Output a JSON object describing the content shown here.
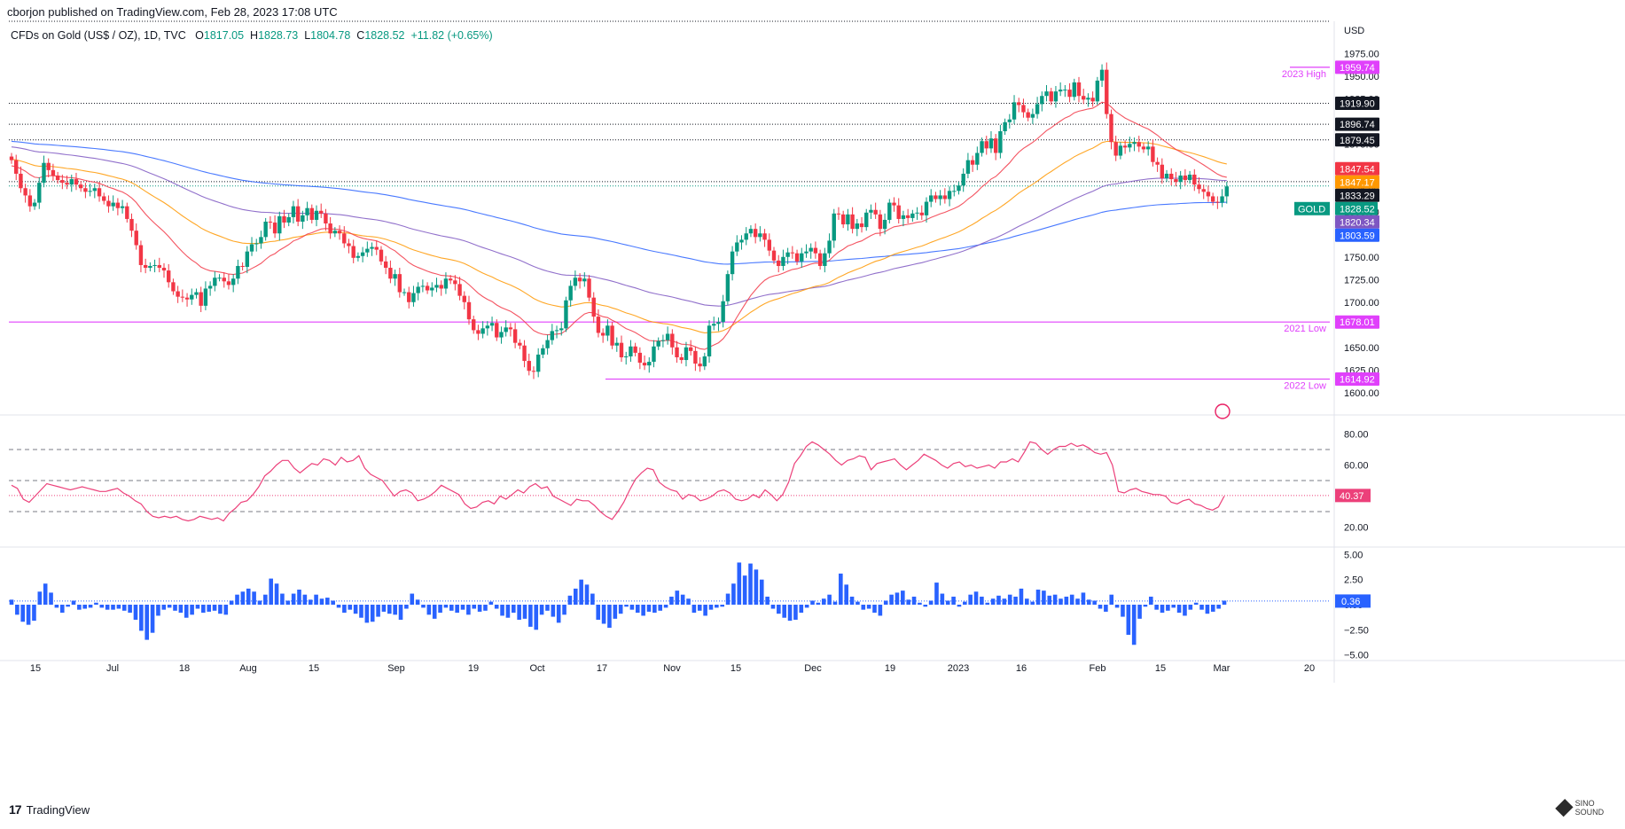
{
  "header": {
    "published": "cborjon published on TradingView.com, Feb 28, 2023 17:08 UTC",
    "symbol": "CFDs on Gold (US$ / OZ), 1D, TVC",
    "open_label": "O",
    "open": "1817.05",
    "high_label": "H",
    "high": "1828.73",
    "low_label": "L",
    "low": "1804.78",
    "close_label": "C",
    "close": "1828.52",
    "change": "+11.82 (+0.65%)"
  },
  "footer": {
    "brand": "TradingView",
    "watermark": "SINO SOUND"
  },
  "colors": {
    "up": "#089981",
    "down": "#f23645",
    "ema20": "#f23645",
    "ema50": "#ff9800",
    "ema100": "#7e57c2",
    "ema200": "#2962ff",
    "level": "#e040fb",
    "rsi": "#ec407a",
    "hist": "#2962ff"
  },
  "chart_data": {
    "type": "candlestick",
    "currency": "USD",
    "x_axis_labels": [
      "15",
      "Jul",
      "18",
      "Aug",
      "15",
      "Sep",
      "19",
      "Oct",
      "17",
      "Nov",
      "15",
      "Dec",
      "19",
      "2023",
      "16",
      "Feb",
      "15",
      "Mar",
      "20"
    ],
    "price_axis": {
      "ticks": [
        "1975.00",
        "1950.00",
        "1925.00",
        "1900.00",
        "1875.00",
        "1850.00",
        "1825.00",
        "1800.00",
        "1775.00",
        "1750.00",
        "1725.00",
        "1700.00",
        "1675.00",
        "1650.00",
        "1625.00",
        "1600.00"
      ],
      "ylim": [
        1588,
        1990
      ]
    },
    "price_labels": [
      {
        "value": 1959.74,
        "text": "1959.74",
        "kind": "level"
      },
      {
        "value": 1919.9,
        "text": "1919.90",
        "kind": "dotted"
      },
      {
        "value": 1896.74,
        "text": "1896.74",
        "kind": "dotted"
      },
      {
        "value": 1879.45,
        "text": "1879.45",
        "kind": "dotted"
      },
      {
        "value": 1847.54,
        "text": "1847.54",
        "kind": "ema20"
      },
      {
        "value": 1847.17,
        "text": "1847.17",
        "kind": "ema50"
      },
      {
        "value": 1833.29,
        "text": "1833.29",
        "kind": "dotted"
      },
      {
        "value": 1828.52,
        "text": "1828.52",
        "kind": "last"
      },
      {
        "value": 1820.34,
        "text": "1820.34",
        "kind": "ema100"
      },
      {
        "value": 1803.59,
        "text": "1803.59",
        "kind": "ema200"
      },
      {
        "value": 1678.01,
        "text": "1678.01",
        "kind": "level"
      },
      {
        "value": 1614.92,
        "text": "1614.92",
        "kind": "level"
      }
    ],
    "level_annotations": [
      {
        "value": 1959.74,
        "text": "2023 High"
      },
      {
        "value": 1678.01,
        "text": "2021 Low"
      },
      {
        "value": 1614.92,
        "text": "2022 Low"
      }
    ],
    "symbol_tag": "GOLD",
    "closes": [
      1857,
      1842,
      1826,
      1818,
      1806,
      1810,
      1832,
      1854,
      1846,
      1840,
      1835,
      1832,
      1830,
      1836,
      1830,
      1826,
      1822,
      1823,
      1826,
      1817,
      1812,
      1806,
      1810,
      1804,
      1806,
      1792,
      1779,
      1763,
      1741,
      1738,
      1740,
      1741,
      1738,
      1735,
      1722,
      1712,
      1706,
      1705,
      1703,
      1708,
      1711,
      1696,
      1715,
      1718,
      1727,
      1727,
      1723,
      1719,
      1726,
      1740,
      1739,
      1756,
      1764,
      1765,
      1772,
      1789,
      1788,
      1776,
      1795,
      1788,
      1794,
      1806,
      1789,
      1796,
      1804,
      1791,
      1801,
      1798,
      1787,
      1776,
      1779,
      1776,
      1765,
      1762,
      1749,
      1751,
      1755,
      1759,
      1761,
      1758,
      1745,
      1738,
      1726,
      1731,
      1711,
      1711,
      1700,
      1710,
      1717,
      1718,
      1713,
      1716,
      1719,
      1715,
      1726,
      1724,
      1720,
      1707,
      1700,
      1681,
      1669,
      1665,
      1671,
      1674,
      1677,
      1661,
      1667,
      1672,
      1670,
      1655,
      1652,
      1635,
      1624,
      1623,
      1642,
      1649,
      1658,
      1668,
      1669,
      1671,
      1702,
      1718,
      1727,
      1723,
      1726,
      1705,
      1684,
      1666,
      1663,
      1674,
      1652,
      1655,
      1639,
      1640,
      1651,
      1644,
      1633,
      1630,
      1634,
      1651,
      1657,
      1658,
      1665,
      1650,
      1639,
      1636,
      1650,
      1646,
      1632,
      1629,
      1640,
      1674,
      1676,
      1678,
      1701,
      1731,
      1756,
      1766,
      1769,
      1776,
      1781,
      1772,
      1776,
      1769,
      1757,
      1746,
      1740,
      1750,
      1755,
      1754,
      1745,
      1754,
      1756,
      1760,
      1754,
      1740,
      1754,
      1768,
      1798,
      1797,
      1786,
      1797,
      1781,
      1787,
      1783,
      1799,
      1802,
      1797,
      1781,
      1791,
      1810,
      1807,
      1792,
      1796,
      1793,
      1798,
      1799,
      1796,
      1811,
      1818,
      1814,
      1818,
      1814,
      1823,
      1823,
      1829,
      1842,
      1857,
      1852,
      1865,
      1878,
      1870,
      1881,
      1865,
      1889,
      1899,
      1902,
      1921,
      1918,
      1910,
      1904,
      1908,
      1919,
      1928,
      1933,
      1922,
      1933,
      1935,
      1935,
      1927,
      1943,
      1928,
      1924,
      1926,
      1922,
      1945,
      1957,
      1908,
      1877,
      1862,
      1873,
      1871,
      1875,
      1877,
      1872,
      1869,
      1872,
      1855,
      1852,
      1837,
      1842,
      1836,
      1833,
      1840,
      1835,
      1841,
      1830,
      1825,
      1822,
      1817,
      1811,
      1810,
      1817,
      1828
    ]
  },
  "rsi": {
    "ticks": [
      "80.00",
      "60.00",
      "40.00",
      "20.00"
    ],
    "ylim": [
      10,
      90
    ],
    "bands": [
      70,
      50,
      30
    ],
    "last": "40.37",
    "values": [
      47,
      45,
      38,
      36,
      40,
      44,
      48,
      47,
      46,
      45,
      44,
      45,
      46,
      45,
      44,
      43,
      43,
      44,
      45,
      42,
      40,
      37,
      35,
      30,
      27,
      26,
      27,
      26,
      27,
      25,
      24,
      25,
      27,
      26,
      25,
      26,
      24,
      29,
      32,
      36,
      37,
      41,
      46,
      53,
      56,
      60,
      63,
      63,
      58,
      55,
      58,
      61,
      60,
      64,
      63,
      60,
      65,
      62,
      63,
      66,
      58,
      54,
      52,
      50,
      45,
      40,
      43,
      44,
      42,
      37,
      38,
      40,
      43,
      47,
      45,
      43,
      41,
      35,
      32,
      33,
      36,
      37,
      35,
      40,
      38,
      41,
      44,
      42,
      46,
      48,
      45,
      46,
      40,
      38,
      36,
      34,
      38,
      37,
      37,
      34,
      30,
      27,
      25,
      30,
      36,
      44,
      51,
      55,
      58,
      57,
      49,
      46,
      44,
      43,
      38,
      41,
      40,
      37,
      38,
      40,
      43,
      44,
      42,
      38,
      37,
      38,
      41,
      39,
      44,
      41,
      37,
      41,
      49,
      61,
      66,
      72,
      75,
      73,
      70,
      67,
      63,
      60,
      63,
      64,
      66,
      65,
      57,
      61,
      62,
      63,
      64,
      60,
      57,
      60,
      63,
      67,
      65,
      63,
      60,
      58,
      61,
      62,
      59,
      60,
      58,
      59,
      60,
      58,
      62,
      62,
      64,
      62,
      68,
      75,
      74,
      70,
      67,
      70,
      72,
      72,
      74,
      72,
      73,
      71,
      68,
      67,
      68,
      60,
      43,
      42,
      44,
      45,
      43,
      42,
      41,
      41,
      40,
      36,
      35,
      37,
      38,
      35,
      34,
      32,
      31,
      33,
      40
    ]
  },
  "histogram": {
    "ticks": [
      "5.00",
      "2.50",
      "0.00",
      "-2.50",
      "-5.00"
    ],
    "ylim": [
      -5.3,
      5.3
    ],
    "last": "0.36",
    "values": [
      0.5,
      -1.0,
      -1.7,
      -2.0,
      -1.6,
      1.3,
      2.1,
      1.2,
      -0.3,
      -0.8,
      -0.2,
      0.4,
      -0.5,
      -0.4,
      -0.3,
      0.2,
      -0.3,
      -0.5,
      -0.5,
      -0.4,
      -0.6,
      -0.8,
      -1.5,
      -2.6,
      -3.5,
      -2.8,
      -1.1,
      -0.5,
      -0.3,
      -0.6,
      -0.8,
      -1.3,
      -1.0,
      -0.4,
      -0.8,
      -0.7,
      -0.6,
      -0.9,
      -1.0,
      0.4,
      1.0,
      1.3,
      1.6,
      1.3,
      0.4,
      1.0,
      2.6,
      2.1,
      1.1,
      0.4,
      1.1,
      1.5,
      1.0,
      0.5,
      1.0,
      0.6,
      0.7,
      0.4,
      -0.3,
      -0.8,
      -0.5,
      -0.9,
      -1.3,
      -1.8,
      -1.7,
      -1.2,
      -0.7,
      -0.9,
      -1.0,
      -1.5,
      -0.4,
      1.1,
      0.5,
      -0.3,
      -1.0,
      -1.4,
      -0.8,
      -0.3,
      -0.6,
      -0.8,
      -0.5,
      -1.0,
      -0.4,
      -0.7,
      -0.6,
      0.3,
      -0.4,
      -1.1,
      -1.3,
      -0.8,
      -1.5,
      -1.4,
      -2.2,
      -2.5,
      -1.0,
      -0.6,
      -1.2,
      -1.8,
      -1.0,
      0.9,
      1.6,
      2.5,
      2.0,
      1.1,
      -1.5,
      -1.9,
      -2.3,
      -1.4,
      -0.9,
      -0.2,
      -0.5,
      -0.8,
      -1.1,
      -0.7,
      -0.8,
      -0.6,
      -0.3,
      0.8,
      1.4,
      1.0,
      0.6,
      -0.8,
      -0.6,
      -1.1,
      -0.5,
      -0.3,
      -0.2,
      1.1,
      2.1,
      4.2,
      2.9,
      4.1,
      3.5,
      2.5,
      0.8,
      -0.4,
      -0.9,
      -1.3,
      -1.6,
      -1.5,
      -0.8,
      -0.3,
      0.4,
      0.2,
      0.6,
      1.0,
      0.3,
      3.1,
      2.0,
      0.8,
      0.3,
      -0.5,
      -0.4,
      -0.8,
      -1.1,
      0.4,
      1.0,
      1.2,
      1.4,
      0.5,
      0.8,
      0.2,
      -0.2,
      0.4,
      2.2,
      1.1,
      0.4,
      0.8,
      -0.2,
      0.3,
      1.0,
      1.3,
      0.8,
      0.2,
      0.6,
      0.9,
      0.6,
      1.0,
      0.8,
      1.6,
      0.6,
      0.3,
      1.5,
      1.4,
      0.9,
      1.0,
      0.6,
      0.8,
      1.0,
      0.6,
      1.2,
      0.5,
      0.4,
      -0.4,
      -0.7,
      1.0,
      -0.3,
      -1.2,
      -3.0,
      -4.0,
      -1.4,
      -0.2,
      0.8,
      -0.5,
      -0.8,
      -0.6,
      -0.3,
      -0.8,
      -1.1,
      -0.5,
      0.2,
      -0.5,
      -0.9,
      -0.7,
      -0.4,
      0.4
    ]
  }
}
